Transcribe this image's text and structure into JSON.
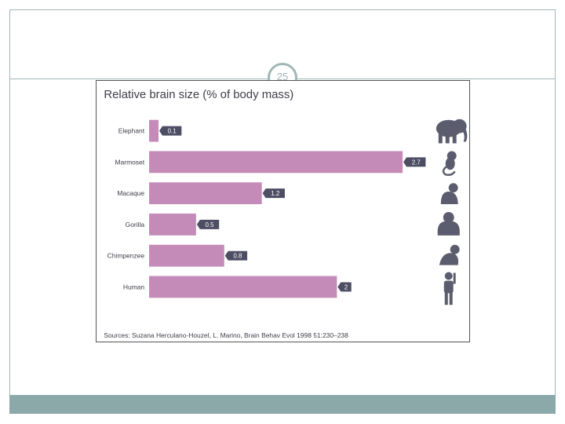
{
  "slide": {
    "page_number": "25",
    "frame_color": "#9fb7b6",
    "footer_color": "#8aa9a8"
  },
  "chart_data": {
    "type": "bar",
    "orientation": "horizontal",
    "title": "Relative brain size (% of body mass)",
    "categories": [
      "Elephant",
      "Marmoset",
      "Macaque",
      "Gorilla",
      "Chimpenzee",
      "Human"
    ],
    "values": [
      0.1,
      2.7,
      1.2,
      0.5,
      0.8,
      2
    ],
    "value_labels": [
      "0.1",
      "2.7",
      "1.2",
      "0.5",
      "0.8",
      "2"
    ],
    "icons": [
      "elephant-icon",
      "marmoset-icon",
      "macaque-icon",
      "gorilla-icon",
      "chimpanzee-icon",
      "human-icon"
    ],
    "xlim": [
      0,
      2.7
    ],
    "grid": false,
    "legend": "none",
    "source": "Sources: Suzana Herculano-Houzel, L. Marino, Brain Behav Evol 1998 51:230–238",
    "colors": {
      "bar": "#c48ab8",
      "label_box": "#4d4e63",
      "label_text": "#ffffff",
      "text": "#3e3e4a",
      "silhouette": "#5b5c6e"
    }
  }
}
